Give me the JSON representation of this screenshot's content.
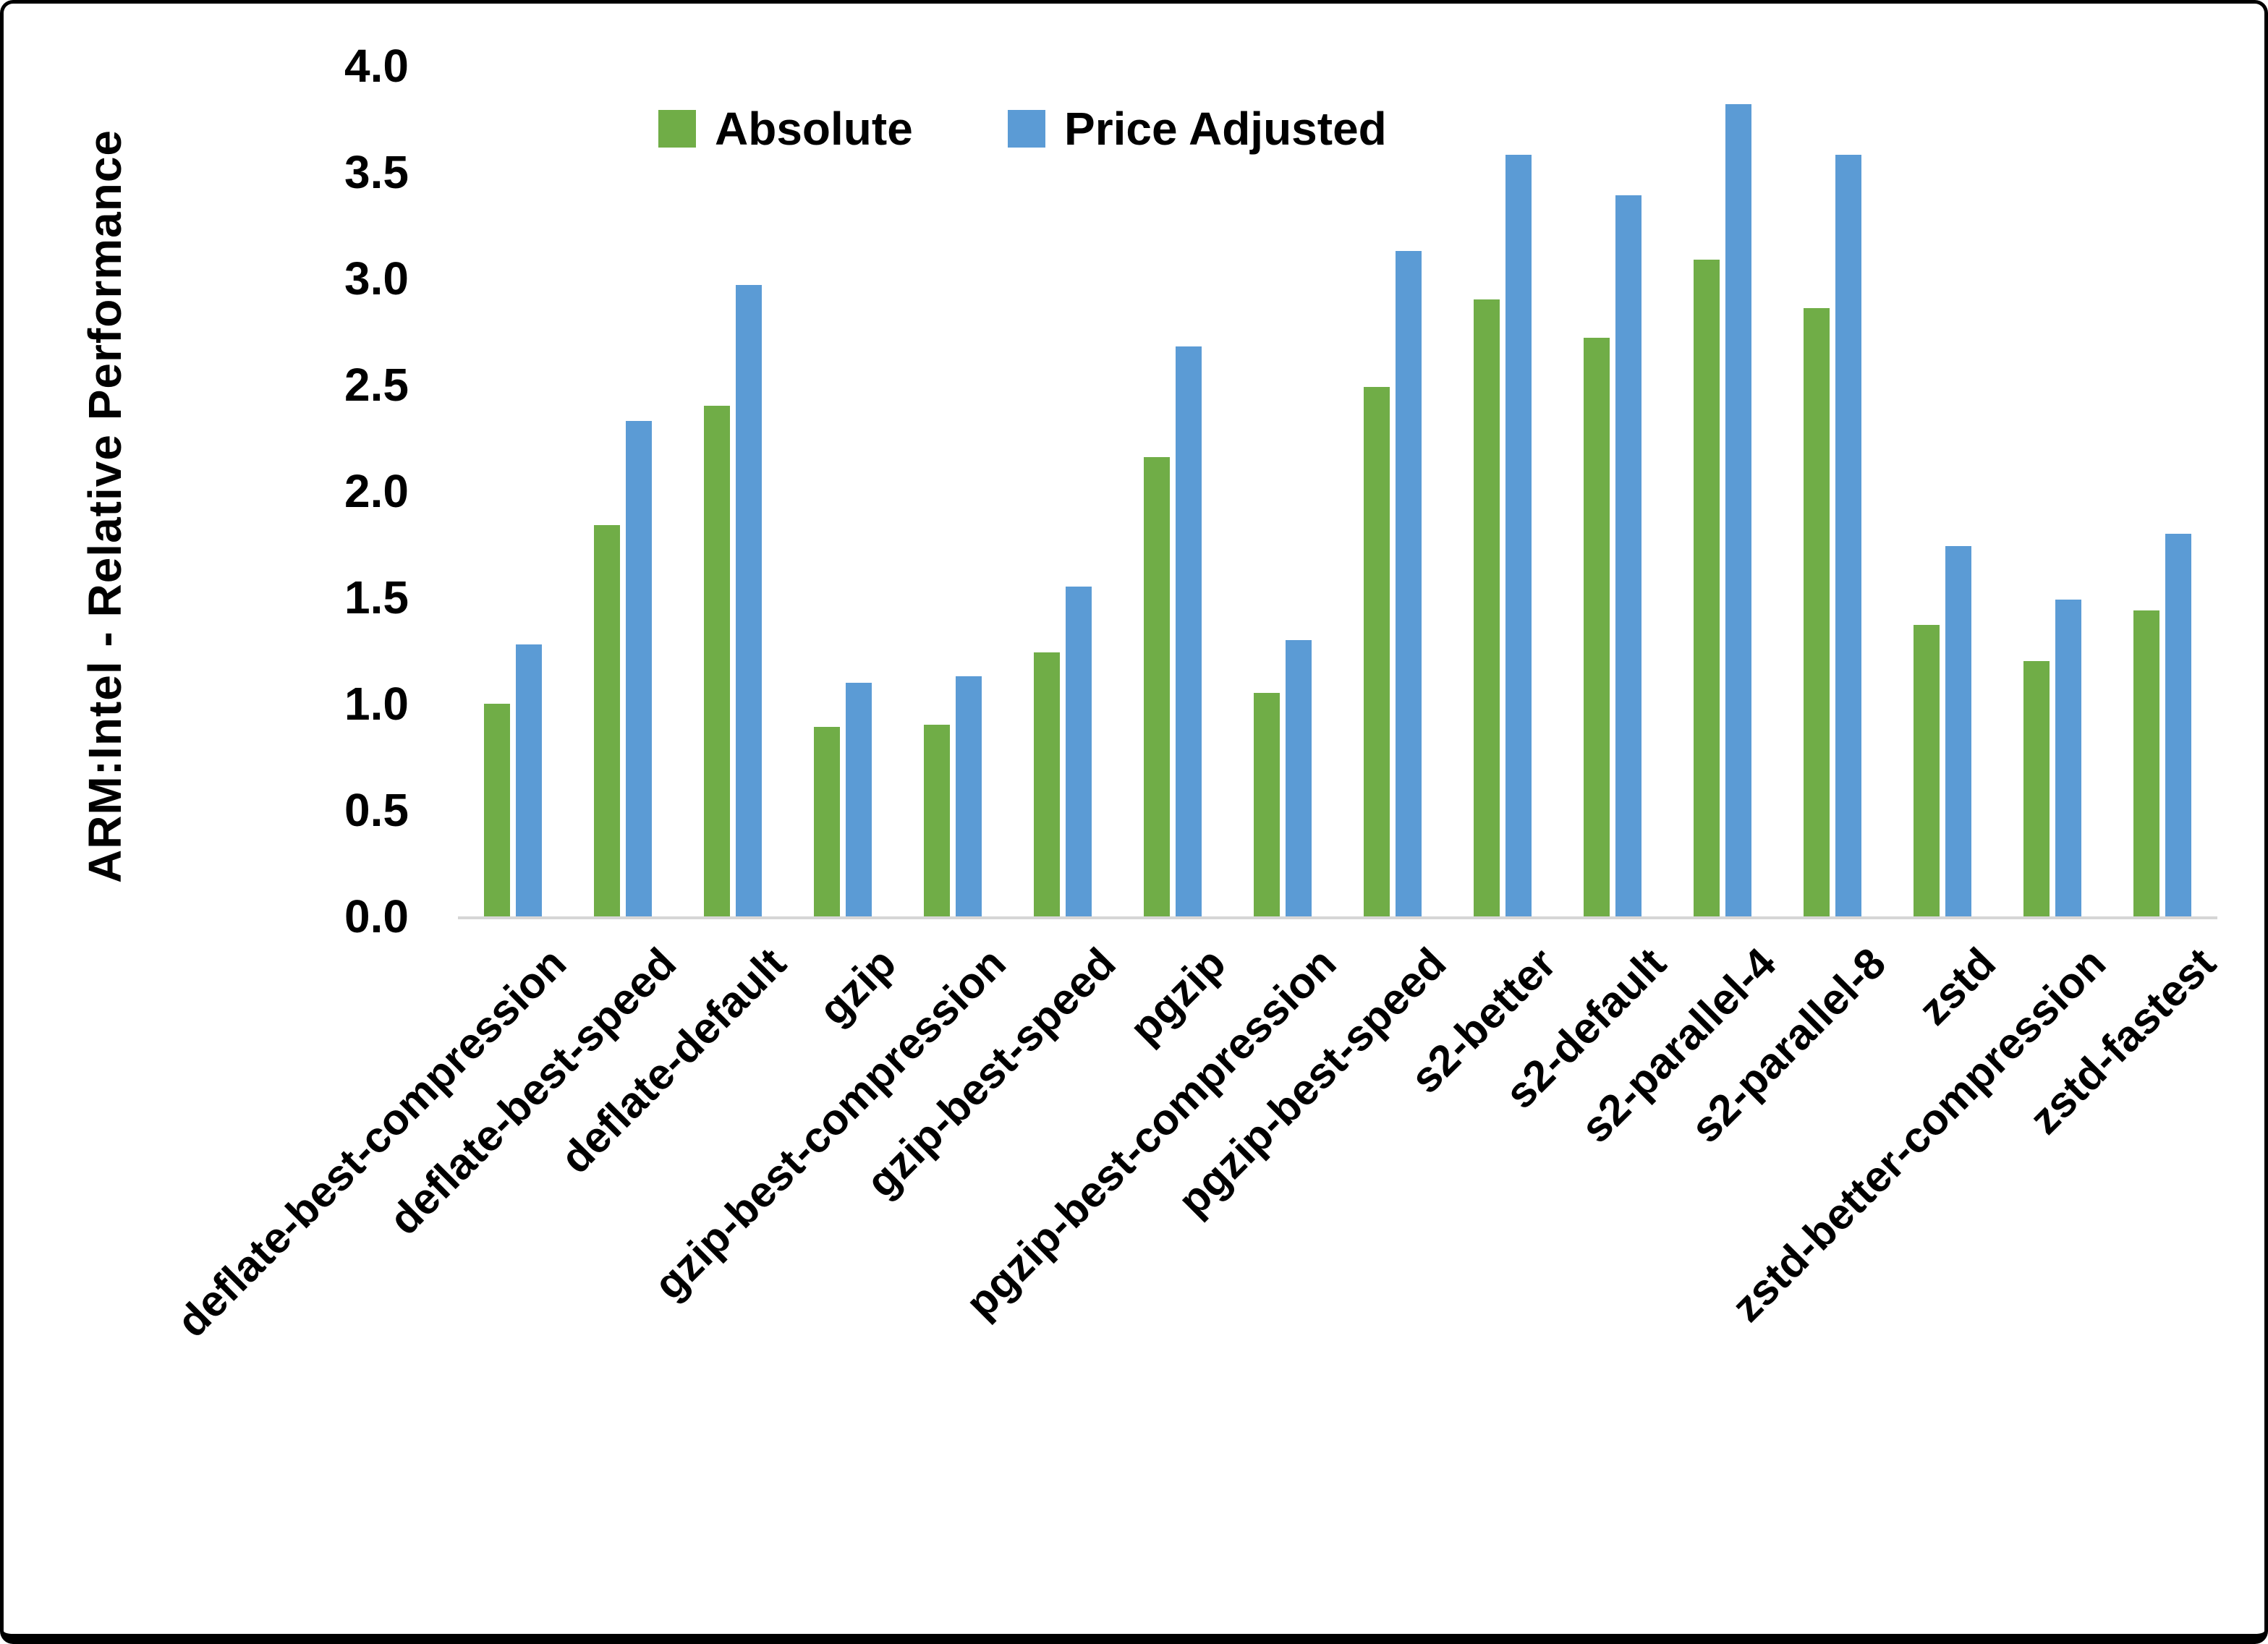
{
  "figure": {
    "background": "#ffffff",
    "frame_border_color": "#000000",
    "axis_line_color": "#d6d6d6"
  },
  "chart_data": {
    "type": "bar",
    "title": "",
    "xlabel": "",
    "ylabel": "ARM:Intel - Relative Performance",
    "ylim": [
      0.0,
      4.0
    ],
    "ytick_step": 0.5,
    "yticks": [
      "0.0",
      "0.5",
      "1.0",
      "1.5",
      "2.0",
      "2.5",
      "3.0",
      "3.5",
      "4.0"
    ],
    "grid": false,
    "legend_position": "top-center",
    "categories": [
      "deflate-best-compression",
      "deflate-best-speed",
      "deflate-default",
      "gzip",
      "gzip-best-compression",
      "gzip-best-speed",
      "pgzip",
      "pgzip-best-compression",
      "pgzip-best-speed",
      "s2-better",
      "s2-default",
      "s2-parallel-4",
      "s2-parallel-8",
      "zstd",
      "zstd-better-compression",
      "zstd-fastest"
    ],
    "series": [
      {
        "name": "Absolute",
        "color": "#70AD47",
        "values": [
          1.0,
          1.84,
          2.4,
          0.89,
          0.9,
          1.24,
          2.16,
          1.05,
          2.49,
          2.9,
          2.72,
          3.09,
          2.86,
          1.37,
          1.2,
          1.44
        ]
      },
      {
        "name": "Price Adjusted",
        "color": "#5B9BD5",
        "values": [
          1.28,
          2.33,
          2.97,
          1.1,
          1.13,
          1.55,
          2.68,
          1.3,
          3.13,
          3.58,
          3.39,
          3.82,
          3.58,
          1.74,
          1.49,
          1.8
        ]
      }
    ]
  }
}
